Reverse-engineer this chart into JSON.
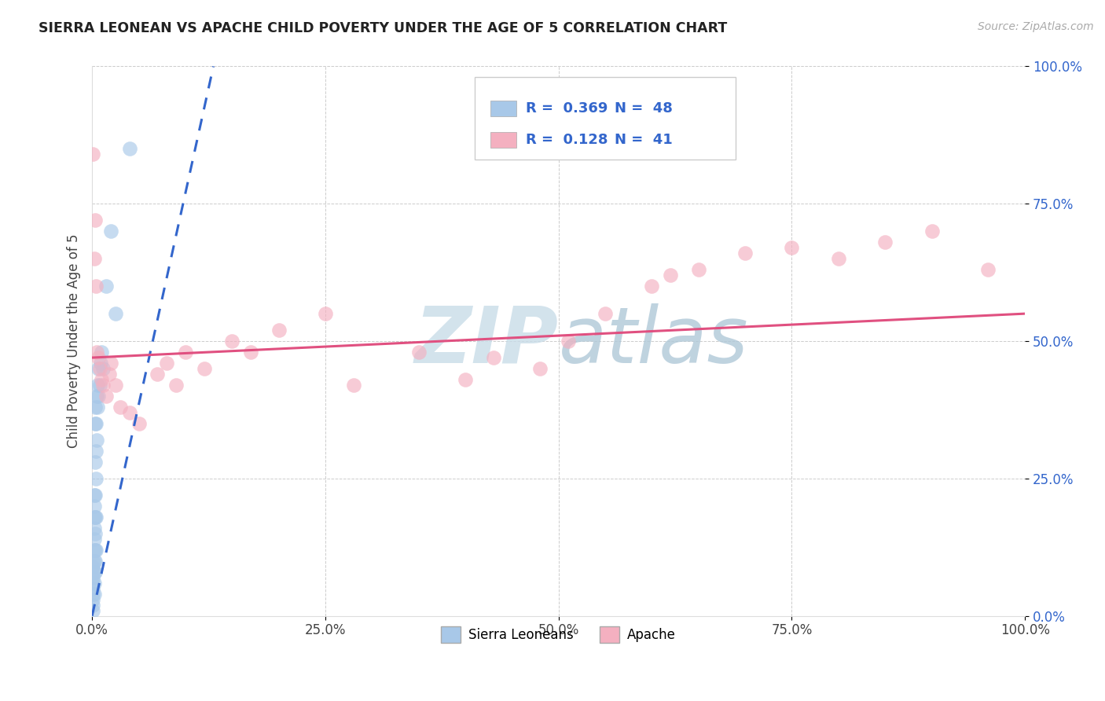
{
  "title": "SIERRA LEONEAN VS APACHE CHILD POVERTY UNDER THE AGE OF 5 CORRELATION CHART",
  "source": "Source: ZipAtlas.com",
  "ylabel": "Child Poverty Under the Age of 5",
  "legend_labels": [
    "Sierra Leoneans",
    "Apache"
  ],
  "legend_r": [
    "R = 0.369",
    "R = 0.128"
  ],
  "legend_n": [
    "N = 48",
    "N = 41"
  ],
  "blue_color": "#a8c8e8",
  "pink_color": "#f4b0c0",
  "blue_line_color": "#3366cc",
  "pink_line_color": "#e05080",
  "watermark_color": "#c8dce8",
  "sierra_x": [
    0.001,
    0.001,
    0.001,
    0.001,
    0.001,
    0.001,
    0.001,
    0.001,
    0.001,
    0.001,
    0.002,
    0.002,
    0.002,
    0.002,
    0.002,
    0.002,
    0.002,
    0.002,
    0.002,
    0.002,
    0.003,
    0.003,
    0.003,
    0.003,
    0.003,
    0.003,
    0.003,
    0.003,
    0.003,
    0.004,
    0.004,
    0.004,
    0.004,
    0.004,
    0.005,
    0.005,
    0.006,
    0.006,
    0.007,
    0.007,
    0.008,
    0.009,
    0.01,
    0.012,
    0.015,
    0.02,
    0.025,
    0.04
  ],
  "sierra_y": [
    0.01,
    0.02,
    0.03,
    0.04,
    0.05,
    0.06,
    0.07,
    0.08,
    0.09,
    0.1,
    0.04,
    0.06,
    0.08,
    0.1,
    0.12,
    0.14,
    0.16,
    0.18,
    0.2,
    0.22,
    0.08,
    0.1,
    0.12,
    0.15,
    0.18,
    0.22,
    0.28,
    0.35,
    0.38,
    0.12,
    0.18,
    0.25,
    0.3,
    0.35,
    0.32,
    0.4,
    0.38,
    0.42,
    0.4,
    0.45,
    0.42,
    0.46,
    0.48,
    0.45,
    0.6,
    0.7,
    0.55,
    0.85
  ],
  "apache_x": [
    0.001,
    0.002,
    0.003,
    0.004,
    0.005,
    0.007,
    0.008,
    0.01,
    0.012,
    0.015,
    0.018,
    0.02,
    0.025,
    0.03,
    0.04,
    0.05,
    0.07,
    0.08,
    0.09,
    0.1,
    0.12,
    0.15,
    0.17,
    0.2,
    0.25,
    0.28,
    0.35,
    0.4,
    0.43,
    0.48,
    0.51,
    0.55,
    0.6,
    0.62,
    0.65,
    0.7,
    0.75,
    0.8,
    0.85,
    0.9,
    0.96
  ],
  "apache_y": [
    0.84,
    0.65,
    0.72,
    0.6,
    0.48,
    0.47,
    0.45,
    0.43,
    0.42,
    0.4,
    0.44,
    0.46,
    0.42,
    0.38,
    0.37,
    0.35,
    0.44,
    0.46,
    0.42,
    0.48,
    0.45,
    0.5,
    0.48,
    0.52,
    0.55,
    0.42,
    0.48,
    0.43,
    0.47,
    0.45,
    0.5,
    0.55,
    0.6,
    0.62,
    0.63,
    0.66,
    0.67,
    0.65,
    0.68,
    0.7,
    0.63
  ],
  "xlim": [
    0.0,
    1.0
  ],
  "ylim": [
    0.0,
    1.0
  ],
  "xticks": [
    0.0,
    0.25,
    0.5,
    0.75,
    1.0
  ],
  "yticks": [
    0.0,
    0.25,
    0.5,
    0.75,
    1.0
  ],
  "xticklabels": [
    "0.0%",
    "25.0%",
    "50.0%",
    "75.0%",
    "100.0%"
  ],
  "yticklabels": [
    "0.0%",
    "25.0%",
    "50.0%",
    "75.0%",
    "100.0%"
  ],
  "blue_trend_x": [
    0.0,
    0.13
  ],
  "blue_trend_y": [
    0.0,
    1.0
  ],
  "pink_trend_x": [
    0.0,
    1.0
  ],
  "pink_trend_y": [
    0.47,
    0.55
  ]
}
